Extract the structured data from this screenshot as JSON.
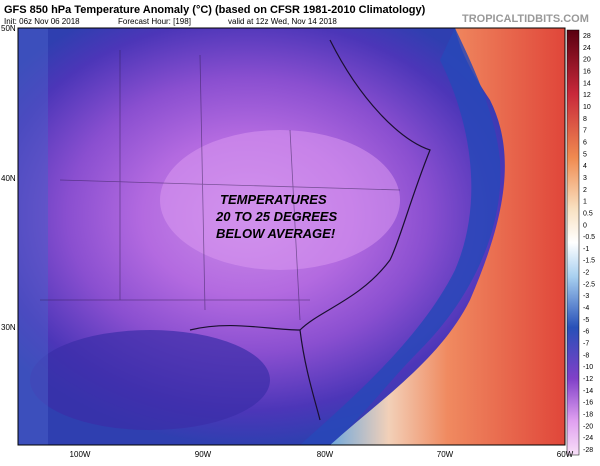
{
  "header": {
    "title": "GFS 850 hPa Temperature Anomaly (°C) (based on CFSR 1981-2010 Climatology)",
    "init": "Init: 06z Nov 06 2018",
    "forecast_hour": "Forecast Hour: [198]",
    "valid": "valid at 12z Wed, Nov 14 2018",
    "site": "TROPICALTIDBITS.COM"
  },
  "annotation": {
    "lines": [
      "TEMPERATURES",
      "20 TO 25 DEGREES",
      "BELOW AVERAGE!"
    ]
  },
  "latitude_labels": [
    "50N",
    "40N",
    "30N"
  ],
  "longitude_labels": [
    "100W",
    "90W",
    "80W",
    "70W",
    "60W"
  ],
  "colorbar": {
    "ticks": [
      28,
      24,
      20,
      16,
      14,
      12,
      10,
      8,
      7,
      6,
      5,
      4,
      3,
      2,
      1,
      0.5,
      0,
      -0.5,
      -1,
      -1.5,
      -2,
      -2.5,
      -3,
      -4,
      -5,
      -6,
      -7,
      -8,
      -10,
      -12,
      -14,
      -16,
      -18,
      -20,
      -24,
      -28
    ]
  }
}
